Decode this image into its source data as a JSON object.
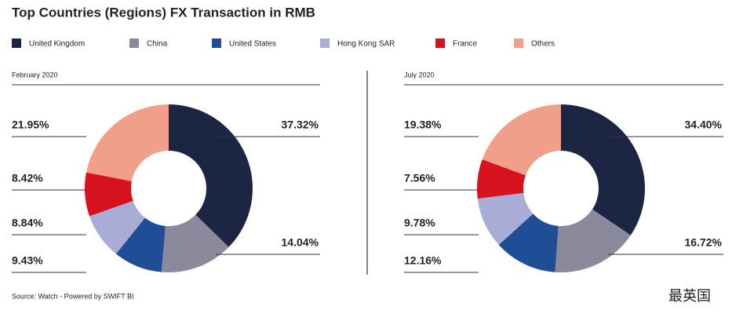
{
  "title": "Top Countries (Regions) FX Transaction in RMB",
  "source": "Source: Watch - Powered by SWIFT BI",
  "watermark": "最英国",
  "chart_data": [
    {
      "type": "pie",
      "subtitle": "February 2020",
      "categories": [
        "United Kingdom",
        "China",
        "United States",
        "Hong Kong SAR",
        "France",
        "Others"
      ],
      "values": [
        37.32,
        14.04,
        9.43,
        8.84,
        8.42,
        21.95
      ],
      "value_labels": [
        "37.32%",
        "14.04%",
        "9.43%",
        "8.84%",
        "8.42%",
        "21.95%"
      ],
      "colors": [
        "#1c2541",
        "#8a8a9c",
        "#1f4e96",
        "#a9add6",
        "#d7121f",
        "#f0a08a"
      ]
    },
    {
      "type": "pie",
      "subtitle": "July 2020",
      "categories": [
        "United Kingdom",
        "China",
        "United States",
        "Hong Kong SAR",
        "France",
        "Others"
      ],
      "values": [
        34.4,
        16.72,
        12.16,
        9.78,
        7.56,
        19.38
      ],
      "value_labels": [
        "34.40%",
        "16.72%",
        "12.16%",
        "9.78%",
        "7.56%",
        "19.38%"
      ],
      "colors": [
        "#1c2541",
        "#8a8a9c",
        "#1f4e96",
        "#a9add6",
        "#d7121f",
        "#f0a08a"
      ]
    }
  ]
}
